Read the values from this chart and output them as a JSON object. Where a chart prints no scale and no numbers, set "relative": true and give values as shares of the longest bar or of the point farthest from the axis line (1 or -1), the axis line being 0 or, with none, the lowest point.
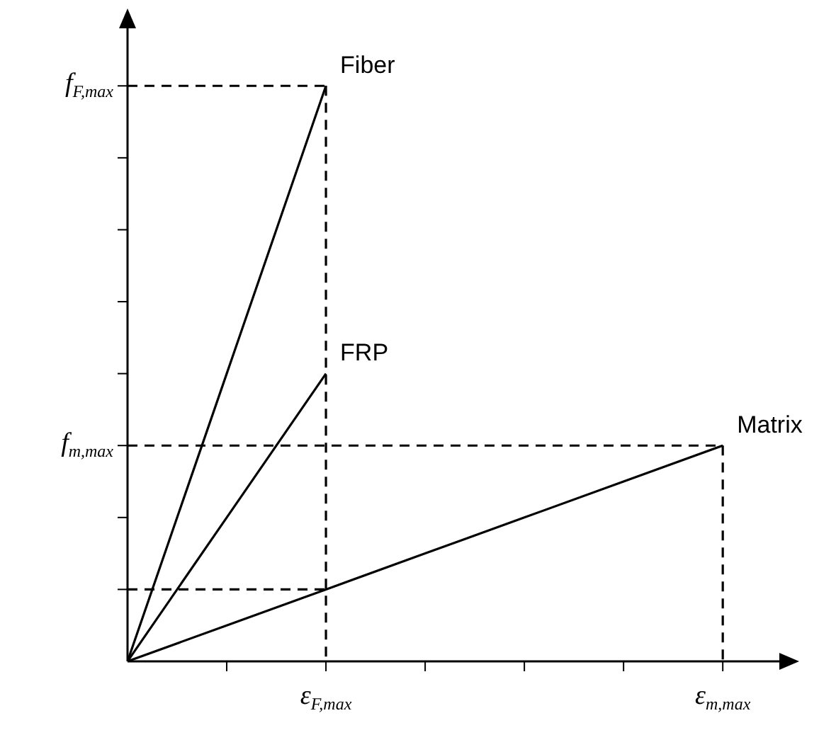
{
  "chart_data": {
    "type": "line",
    "relative": true,
    "marker": "none",
    "legend": false,
    "categories": [
      null,
      null,
      "ε$_{F,max}$",
      null,
      null,
      null,
      "ε$_{m,max}$"
    ],
    "annotations": [
      "f$_{F,max}$",
      "f$_{m,max}$"
    ],
    "series": [
      {
        "name": "Fiber",
        "color": "#000000",
        "values": [
          0,
          0.5,
          1,
          null,
          null,
          null,
          null
        ]
      },
      {
        "name": "FRP",
        "color": "#000000",
        "values": [
          0,
          0.25,
          0.5,
          null,
          null,
          null,
          null
        ]
      },
      {
        "name": "Matrix",
        "color": "#000000",
        "values": [
          0,
          0.0625,
          0.125,
          0.1875,
          0.25,
          0.3125,
          0.375
        ]
      },
      {
        "color": "#000000",
        "line_style": "dashed",
        "values": [
          1,
          1,
          1,
          null,
          null,
          null,
          null
        ]
      },
      {
        "color": "#000000",
        "line_style": "dashed",
        "x": [
          "ε$_{F,max}$",
          "ε$_{F,max}$"
        ],
        "values": [
          1,
          0
        ]
      },
      {
        "color": "#000000",
        "line_style": "dashed",
        "values": [
          0.375,
          0.375,
          0.375,
          0.375,
          0.375,
          0.375,
          0.375
        ]
      },
      {
        "color": "#000000",
        "line_style": "dashed",
        "x": [
          "ε$_{m,max}$",
          "ε$_{m,max}$"
        ],
        "values": [
          0.375,
          0
        ]
      },
      {
        "color": "#000000",
        "line_style": "dashed",
        "values": [
          0.125,
          0.125,
          0.125,
          null,
          null,
          null,
          null
        ]
      }
    ]
  }
}
